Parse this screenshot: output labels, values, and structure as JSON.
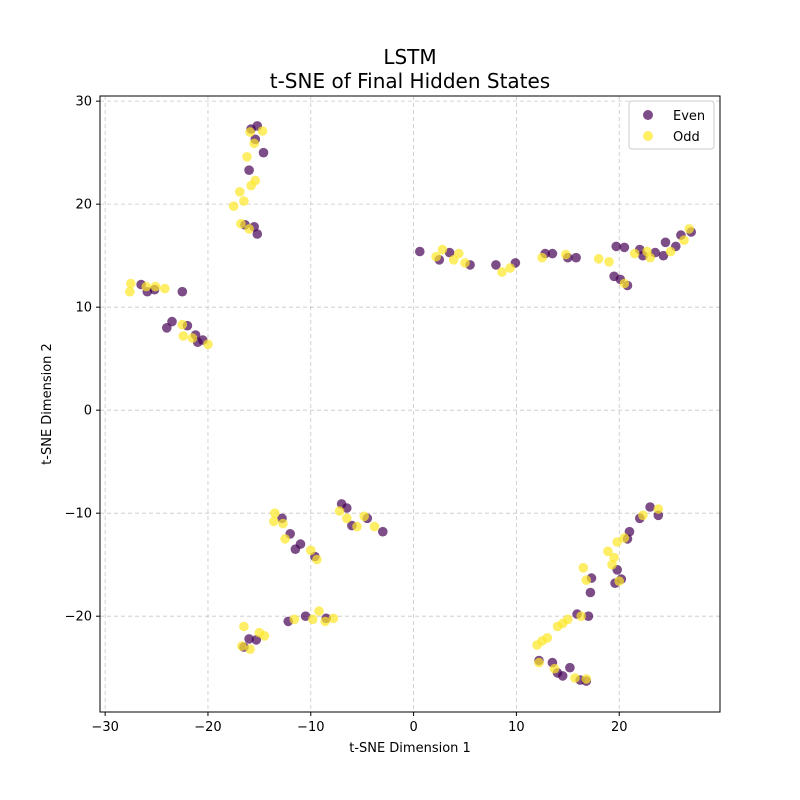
{
  "chart_data": {
    "type": "scatter",
    "title": "LSTM",
    "subtitle": "t-SNE of Final Hidden States",
    "xlabel": "t-SNE Dimension 1",
    "ylabel": "t-SNE Dimension 2",
    "xlim": [
      -30.5,
      29.8
    ],
    "ylim": [
      -29.3,
      30.5
    ],
    "xticks": [
      -30,
      -20,
      -10,
      0,
      10,
      20
    ],
    "yticks": [
      -20,
      -10,
      0,
      10,
      20,
      30
    ],
    "xtick_labels": [
      "−30",
      "−20",
      "−10",
      "0",
      "10",
      "20"
    ],
    "ytick_labels": [
      "−20",
      "−10",
      "0",
      "10",
      "20",
      "30"
    ],
    "grid": true,
    "legend_position": "top-right",
    "series": [
      {
        "name": "Even",
        "color": "#440154",
        "points": [
          [
            -15.8,
            27.3
          ],
          [
            -15.2,
            27.6
          ],
          [
            -14.6,
            25.0
          ],
          [
            -15.4,
            26.3
          ],
          [
            -16.0,
            23.3
          ],
          [
            -15.5,
            17.8
          ],
          [
            -15.2,
            17.1
          ],
          [
            -16.4,
            18.0
          ],
          [
            -26.5,
            12.2
          ],
          [
            -25.9,
            11.5
          ],
          [
            -25.2,
            11.7
          ],
          [
            -22.5,
            11.5
          ],
          [
            -23.5,
            8.6
          ],
          [
            -22.0,
            8.2
          ],
          [
            -21.2,
            7.3
          ],
          [
            -20.5,
            6.8
          ],
          [
            -24.0,
            8.0
          ],
          [
            -21.0,
            6.6
          ],
          [
            0.6,
            15.4
          ],
          [
            2.5,
            14.6
          ],
          [
            3.5,
            15.3
          ],
          [
            5.5,
            14.1
          ],
          [
            8.0,
            14.1
          ],
          [
            9.9,
            14.3
          ],
          [
            12.8,
            15.2
          ],
          [
            13.5,
            15.2
          ],
          [
            15.0,
            14.8
          ],
          [
            15.8,
            14.8
          ],
          [
            19.7,
            15.9
          ],
          [
            20.5,
            15.8
          ],
          [
            22.0,
            15.6
          ],
          [
            23.5,
            15.3
          ],
          [
            24.5,
            16.3
          ],
          [
            26.0,
            17.0
          ],
          [
            27.0,
            17.3
          ],
          [
            19.5,
            13.0
          ],
          [
            20.8,
            12.1
          ],
          [
            24.3,
            15.0
          ],
          [
            22.3,
            15.0
          ],
          [
            25.5,
            15.9
          ],
          [
            20.1,
            12.7
          ],
          [
            -12.8,
            -10.5
          ],
          [
            -12.0,
            -12.0
          ],
          [
            -11.5,
            -13.5
          ],
          [
            -11.0,
            -13.0
          ],
          [
            -9.6,
            -14.2
          ],
          [
            -7.0,
            -9.1
          ],
          [
            -6.5,
            -9.5
          ],
          [
            -4.5,
            -10.5
          ],
          [
            -3.0,
            -11.8
          ],
          [
            -6.0,
            -11.2
          ],
          [
            -16.0,
            -22.2
          ],
          [
            -15.3,
            -22.3
          ],
          [
            -12.2,
            -20.5
          ],
          [
            -10.5,
            -20.0
          ],
          [
            -8.5,
            -20.2
          ],
          [
            -16.5,
            -23.0
          ],
          [
            21.0,
            -11.8
          ],
          [
            20.8,
            -12.5
          ],
          [
            22.0,
            -10.5
          ],
          [
            23.0,
            -9.4
          ],
          [
            23.8,
            -10.2
          ],
          [
            19.8,
            -15.5
          ],
          [
            19.6,
            -16.8
          ],
          [
            17.3,
            -16.3
          ],
          [
            17.2,
            -17.7
          ],
          [
            20.2,
            -16.4
          ],
          [
            13.5,
            -24.5
          ],
          [
            14.5,
            -25.8
          ],
          [
            15.2,
            -25.0
          ],
          [
            16.2,
            -26.2
          ],
          [
            16.8,
            -26.3
          ],
          [
            15.9,
            -19.8
          ],
          [
            17.0,
            -20.0
          ],
          [
            12.2,
            -24.3
          ],
          [
            14.0,
            -25.5
          ]
        ]
      },
      {
        "name": "Odd",
        "color": "#fde725",
        "points": [
          [
            -15.9,
            27.0
          ],
          [
            -14.7,
            27.1
          ],
          [
            -15.5,
            25.9
          ],
          [
            -16.2,
            24.6
          ],
          [
            -15.4,
            22.3
          ],
          [
            -15.8,
            21.8
          ],
          [
            -16.9,
            21.2
          ],
          [
            -17.5,
            19.8
          ],
          [
            -16.8,
            18.1
          ],
          [
            -16.0,
            17.6
          ],
          [
            -16.5,
            20.3
          ],
          [
            -27.5,
            12.3
          ],
          [
            -27.6,
            11.5
          ],
          [
            -25.1,
            12.0
          ],
          [
            -24.2,
            11.8
          ],
          [
            -22.5,
            8.3
          ],
          [
            -22.4,
            7.2
          ],
          [
            -21.5,
            7.0
          ],
          [
            -20.0,
            6.4
          ],
          [
            -26.0,
            12.0
          ],
          [
            2.8,
            15.6
          ],
          [
            2.2,
            14.9
          ],
          [
            4.4,
            15.2
          ],
          [
            3.9,
            14.6
          ],
          [
            5.0,
            14.3
          ],
          [
            8.6,
            13.4
          ],
          [
            9.4,
            13.8
          ],
          [
            12.5,
            14.8
          ],
          [
            14.8,
            15.1
          ],
          [
            18.0,
            14.7
          ],
          [
            19.0,
            14.4
          ],
          [
            21.5,
            15.2
          ],
          [
            23.0,
            14.8
          ],
          [
            26.3,
            16.5
          ],
          [
            26.8,
            17.6
          ],
          [
            20.5,
            12.3
          ],
          [
            22.7,
            15.4
          ],
          [
            25.0,
            15.4
          ],
          [
            -13.5,
            -10.0
          ],
          [
            -13.6,
            -10.8
          ],
          [
            -12.7,
            -11.0
          ],
          [
            -12.5,
            -12.5
          ],
          [
            -10.0,
            -13.6
          ],
          [
            -9.4,
            -14.5
          ],
          [
            -7.2,
            -9.8
          ],
          [
            -6.5,
            -10.5
          ],
          [
            -5.5,
            -11.3
          ],
          [
            -3.8,
            -11.3
          ],
          [
            -4.8,
            -10.3
          ],
          [
            -16.5,
            -21.0
          ],
          [
            -15.0,
            -21.6
          ],
          [
            -14.5,
            -21.9
          ],
          [
            -16.7,
            -22.9
          ],
          [
            -15.9,
            -23.2
          ],
          [
            -9.2,
            -19.5
          ],
          [
            -7.8,
            -20.2
          ],
          [
            -8.6,
            -20.5
          ],
          [
            -11.6,
            -20.3
          ],
          [
            -9.8,
            -20.3
          ],
          [
            18.9,
            -13.7
          ],
          [
            19.5,
            -14.3
          ],
          [
            19.3,
            -15.0
          ],
          [
            19.8,
            -12.8
          ],
          [
            20.5,
            -12.4
          ],
          [
            22.3,
            -10.2
          ],
          [
            23.8,
            -9.6
          ],
          [
            16.5,
            -15.3
          ],
          [
            16.8,
            -16.5
          ],
          [
            20.0,
            -16.6
          ],
          [
            12.0,
            -22.8
          ],
          [
            12.5,
            -22.4
          ],
          [
            13.0,
            -22.1
          ],
          [
            12.2,
            -24.5
          ],
          [
            13.7,
            -25.1
          ],
          [
            15.0,
            -20.3
          ],
          [
            14.5,
            -20.7
          ],
          [
            16.3,
            -20.0
          ],
          [
            15.7,
            -26.0
          ],
          [
            16.8,
            -26.1
          ],
          [
            14.0,
            -21.0
          ]
        ]
      }
    ]
  }
}
